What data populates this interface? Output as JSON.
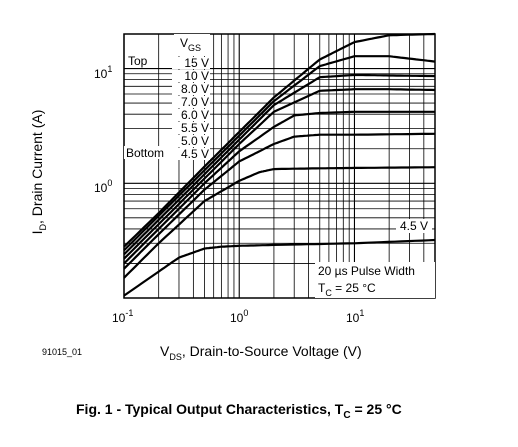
{
  "chart_data": {
    "type": "line",
    "title": "",
    "xlabel": {
      "main": "V",
      "sub": "DS",
      "rest": ", Drain-to-Source Voltage (V)"
    },
    "ylabel": {
      "main": "I",
      "sub": "D",
      "rest": ", Drain Current (A)"
    },
    "x_scale": "log",
    "y_scale": "log",
    "xlim": [
      0.1,
      50
    ],
    "ylim": [
      0.1,
      20
    ],
    "grid": true,
    "x_ticks": [
      {
        "value": 0.1,
        "base": "10",
        "exp": "-1"
      },
      {
        "value": 1,
        "base": "10",
        "exp": "0"
      },
      {
        "value": 10,
        "base": "10",
        "exp": "1"
      }
    ],
    "y_ticks": [
      {
        "value": 1,
        "base": "10",
        "exp": "0"
      },
      {
        "value": 10,
        "base": "10",
        "exp": "1"
      }
    ],
    "legend": {
      "header_main": "V",
      "header_sub": "GS",
      "top_label": "Top",
      "bottom_label": "Bottom",
      "entries": [
        "15 V",
        "10 V",
        "8.0 V",
        "7.0 V",
        "6.0 V",
        "5.5 V",
        "5.0 V",
        "4.5 V"
      ]
    },
    "annotations": {
      "curve_label": "4.5 V",
      "pulse_width": "20 µs Pulse Width",
      "temp_main": "T",
      "temp_sub": "C",
      "temp_rest": " = 25 °C"
    },
    "series": [
      {
        "gs": 15,
        "x": [
          0.1,
          0.2,
          0.5,
          1,
          2,
          5,
          10,
          20,
          50
        ],
        "y": [
          0.28,
          0.55,
          1.4,
          2.8,
          5.6,
          12,
          17,
          19.5,
          20
        ]
      },
      {
        "gs": 10,
        "x": [
          0.1,
          0.2,
          0.5,
          1,
          2,
          5,
          10,
          20,
          50
        ],
        "y": [
          0.26,
          0.52,
          1.3,
          2.6,
          5.2,
          10.5,
          12.8,
          12.8,
          11.5
        ]
      },
      {
        "gs": 8,
        "x": [
          0.1,
          0.2,
          0.5,
          1,
          2,
          5,
          10,
          20,
          50
        ],
        "y": [
          0.24,
          0.48,
          1.2,
          2.4,
          4.8,
          8.4,
          8.8,
          8.7,
          8.6
        ]
      },
      {
        "gs": 7,
        "x": [
          0.1,
          0.2,
          0.5,
          1,
          2,
          5,
          10,
          20,
          50
        ],
        "y": [
          0.22,
          0.44,
          1.1,
          2.2,
          4.2,
          6.4,
          6.6,
          6.6,
          6.5
        ]
      },
      {
        "gs": 6,
        "x": [
          0.1,
          0.2,
          0.5,
          1,
          2,
          3,
          5,
          10,
          50
        ],
        "y": [
          0.2,
          0.4,
          1.0,
          1.9,
          3.1,
          3.9,
          4.1,
          4.2,
          4.2
        ]
      },
      {
        "gs": 5.5,
        "x": [
          0.1,
          0.2,
          0.5,
          1,
          2,
          3,
          5,
          10,
          50
        ],
        "y": [
          0.18,
          0.36,
          0.88,
          1.55,
          2.2,
          2.55,
          2.65,
          2.65,
          2.7
        ]
      },
      {
        "gs": 5,
        "x": [
          0.1,
          0.2,
          0.5,
          1,
          1.5,
          2,
          5,
          10,
          50
        ],
        "y": [
          0.15,
          0.3,
          0.7,
          1.05,
          1.25,
          1.33,
          1.35,
          1.36,
          1.38
        ]
      },
      {
        "gs": 4.5,
        "x": [
          0.1,
          0.2,
          0.3,
          0.5,
          0.7,
          1,
          2,
          10,
          50
        ],
        "y": [
          0.105,
          0.17,
          0.225,
          0.27,
          0.28,
          0.285,
          0.29,
          0.3,
          0.32
        ]
      }
    ]
  },
  "figure": {
    "id": "91015_01",
    "caption_prefix": "Fig. 1 - Typical Output Characteristics, T",
    "caption_sub": "C",
    "caption_suffix": " = 25 °C"
  }
}
